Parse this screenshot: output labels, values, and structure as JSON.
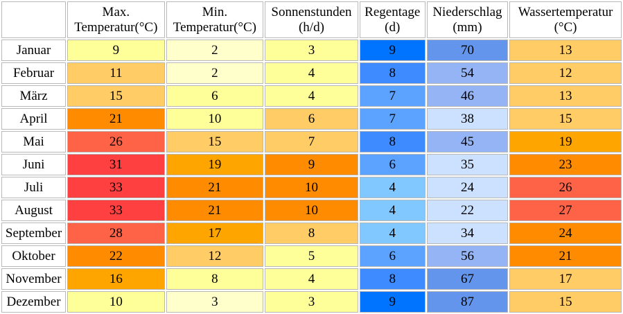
{
  "headers": [
    {
      "line1": "",
      "line2": ""
    },
    {
      "line1": "Max.",
      "line2": "Temperatur(°C)"
    },
    {
      "line1": "Min.",
      "line2": "Temperatur(°C)"
    },
    {
      "line1": "Sonnenstunden",
      "line2": "(h/d)"
    },
    {
      "line1": "Regentage",
      "line2": "(d)"
    },
    {
      "line1": "Niederschlag",
      "line2": "(mm)"
    },
    {
      "line1": "Wassertemperatur",
      "line2": "(°C)"
    }
  ],
  "rows": [
    {
      "month": "Januar",
      "max": "9",
      "min": "2",
      "sun": "3",
      "rain": "9",
      "prec": "70",
      "water": "13"
    },
    {
      "month": "Februar",
      "max": "11",
      "min": "2",
      "sun": "4",
      "rain": "8",
      "prec": "54",
      "water": "12"
    },
    {
      "month": "März",
      "max": "15",
      "min": "6",
      "sun": "4",
      "rain": "7",
      "prec": "46",
      "water": "13"
    },
    {
      "month": "April",
      "max": "21",
      "min": "10",
      "sun": "6",
      "rain": "7",
      "prec": "38",
      "water": "15"
    },
    {
      "month": "Mai",
      "max": "26",
      "min": "15",
      "sun": "7",
      "rain": "8",
      "prec": "45",
      "water": "19"
    },
    {
      "month": "Juni",
      "max": "31",
      "min": "19",
      "sun": "9",
      "rain": "6",
      "prec": "35",
      "water": "23"
    },
    {
      "month": "Juli",
      "max": "33",
      "min": "21",
      "sun": "10",
      "rain": "4",
      "prec": "24",
      "water": "26"
    },
    {
      "month": "August",
      "max": "33",
      "min": "21",
      "sun": "10",
      "rain": "4",
      "prec": "22",
      "water": "27"
    },
    {
      "month": "September",
      "max": "28",
      "min": "17",
      "sun": "8",
      "rain": "4",
      "prec": "34",
      "water": "24"
    },
    {
      "month": "Oktober",
      "max": "22",
      "min": "12",
      "sun": "5",
      "rain": "6",
      "prec": "56",
      "water": "21"
    },
    {
      "month": "November",
      "max": "16",
      "min": "8",
      "sun": "4",
      "rain": "8",
      "prec": "67",
      "water": "17"
    },
    {
      "month": "Dezember",
      "max": "10",
      "min": "3",
      "sun": "3",
      "rain": "9",
      "prec": "87",
      "water": "15"
    }
  ],
  "colors": {
    "max": [
      "#ffff99",
      "#ffcc66",
      "#ffcc66",
      "#ff8c00",
      "#ff6347",
      "#ff4040",
      "#ff4040",
      "#ff4040",
      "#ff6347",
      "#ff8c00",
      "#ffa500",
      "#ffff99"
    ],
    "min": [
      "#ffffcc",
      "#ffffcc",
      "#ffff99",
      "#ffff99",
      "#ffcc66",
      "#ffa500",
      "#ff8c00",
      "#ff8c00",
      "#ffa500",
      "#ffcc66",
      "#ffff99",
      "#ffffcc"
    ],
    "sun": [
      "#ffff99",
      "#ffff99",
      "#ffff99",
      "#ffcc66",
      "#ffcc66",
      "#ff8c00",
      "#ff8c00",
      "#ff8c00",
      "#ffcc66",
      "#ffff99",
      "#ffff99",
      "#ffff99"
    ],
    "rain": [
      "#0073ff",
      "#3d8bff",
      "#5ca3ff",
      "#5ca3ff",
      "#3d8bff",
      "#5ca3ff",
      "#80c8ff",
      "#80c8ff",
      "#80c8ff",
      "#5ca3ff",
      "#3d8bff",
      "#0073ff"
    ],
    "prec": [
      "#6495ed",
      "#94b4f5",
      "#94b4f5",
      "#cce0ff",
      "#94b4f5",
      "#cce0ff",
      "#cce0ff",
      "#cce0ff",
      "#cce0ff",
      "#94b4f5",
      "#6495ed",
      "#6495ed"
    ],
    "water": [
      "#ffcc66",
      "#ffcc66",
      "#ffcc66",
      "#ffcc66",
      "#ffa500",
      "#ff8c00",
      "#ff6347",
      "#ff6347",
      "#ff8c00",
      "#ff8c00",
      "#ffcc66",
      "#ffcc66"
    ]
  }
}
